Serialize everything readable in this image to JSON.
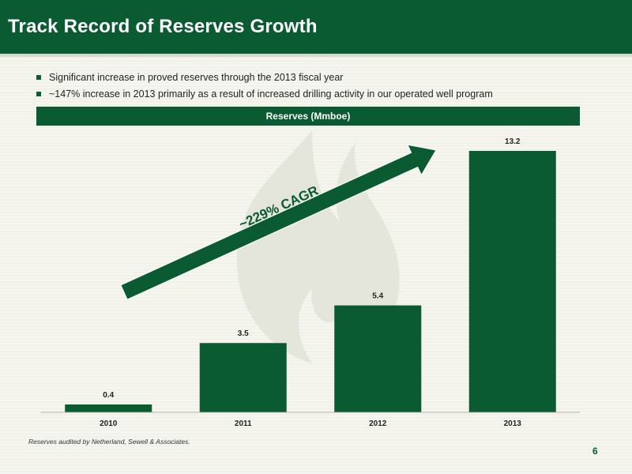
{
  "header": {
    "title": "Track Record of Reserves Growth"
  },
  "bullets": [
    "Significant increase in proved reserves through the 2013 fiscal year",
    "~147% increase in 2013 primarily as a result of increased drilling activity in our operated well program"
  ],
  "chart_data": {
    "type": "bar",
    "title": "Reserves (Mmboe)",
    "categories": [
      "2010",
      "2011",
      "2012",
      "2013"
    ],
    "values": [
      0.4,
      3.5,
      5.4,
      13.2
    ],
    "data_labels": [
      "0.4",
      "3.5",
      "5.4",
      "13.2"
    ],
    "ylim": [
      0,
      13.2
    ],
    "grid": false,
    "legend": "none",
    "annotation": "~229% CAGR",
    "bar_color": "#0a5a32",
    "arrow_color": "#0a5a32"
  },
  "footnote": "Reserves audited by Netherland, Sewell & Associates.",
  "page_number": "6"
}
